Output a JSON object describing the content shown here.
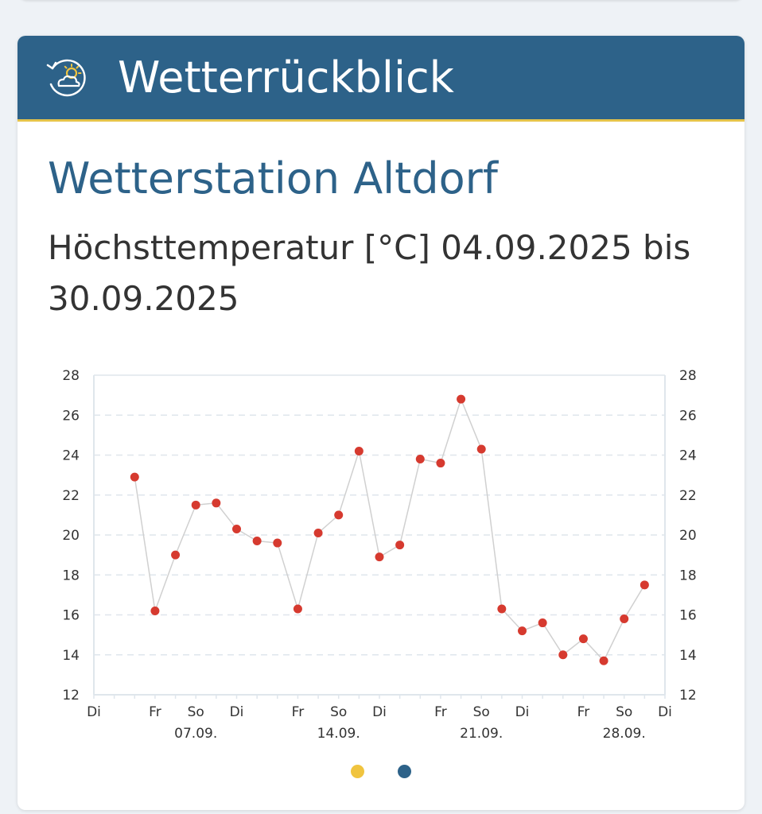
{
  "header": {
    "title": "Wetterrückblick",
    "icon": "weather-history-icon"
  },
  "station": {
    "name": "Wetterstation Altdorf"
  },
  "chart_data": {
    "type": "scatter",
    "title": "Höchsttemperatur [°C] 04.09.2025 bis 30.09.2025",
    "x_start": "2025-09-02",
    "x_end": "2025-09-30",
    "ylim": [
      12,
      28
    ],
    "y_ticks": [
      12,
      14,
      16,
      18,
      20,
      22,
      24,
      26,
      28
    ],
    "grid": true,
    "x_tick_labels": [
      {
        "day": "2025-09-02",
        "label": "Di",
        "sub": ""
      },
      {
        "day": "2025-09-05",
        "label": "Fr",
        "sub": ""
      },
      {
        "day": "2025-09-07",
        "label": "So",
        "sub": "07.09."
      },
      {
        "day": "2025-09-09",
        "label": "Di",
        "sub": ""
      },
      {
        "day": "2025-09-12",
        "label": "Fr",
        "sub": ""
      },
      {
        "day": "2025-09-14",
        "label": "So",
        "sub": "14.09."
      },
      {
        "day": "2025-09-16",
        "label": "Di",
        "sub": ""
      },
      {
        "day": "2025-09-19",
        "label": "Fr",
        "sub": ""
      },
      {
        "day": "2025-09-21",
        "label": "So",
        "sub": "21.09."
      },
      {
        "day": "2025-09-23",
        "label": "Di",
        "sub": ""
      },
      {
        "day": "2025-09-26",
        "label": "Fr",
        "sub": ""
      },
      {
        "day": "2025-09-28",
        "label": "So",
        "sub": "28.09."
      },
      {
        "day": "2025-09-30",
        "label": "Di",
        "sub": ""
      }
    ],
    "series": [
      {
        "color": "#d63a2f",
        "line_color": "#d0d0d0",
        "points": [
          {
            "x": "2025-09-04",
            "y": 22.9
          },
          {
            "x": "2025-09-05",
            "y": 16.2
          },
          {
            "x": "2025-09-06",
            "y": 19.0
          },
          {
            "x": "2025-09-07",
            "y": 21.5
          },
          {
            "x": "2025-09-08",
            "y": 21.6
          },
          {
            "x": "2025-09-09",
            "y": 20.3
          },
          {
            "x": "2025-09-10",
            "y": 19.7
          },
          {
            "x": "2025-09-11",
            "y": 19.6
          },
          {
            "x": "2025-09-12",
            "y": 16.3
          },
          {
            "x": "2025-09-13",
            "y": 20.1
          },
          {
            "x": "2025-09-14",
            "y": 21.0
          },
          {
            "x": "2025-09-15",
            "y": 24.2
          },
          {
            "x": "2025-09-16",
            "y": 18.9
          },
          {
            "x": "2025-09-17",
            "y": 19.5
          },
          {
            "x": "2025-09-18",
            "y": 23.8
          },
          {
            "x": "2025-09-19",
            "y": 23.6
          },
          {
            "x": "2025-09-20",
            "y": 26.8
          },
          {
            "x": "2025-09-21",
            "y": 24.3
          },
          {
            "x": "2025-09-22",
            "y": 16.3
          },
          {
            "x": "2025-09-23",
            "y": 15.2
          },
          {
            "x": "2025-09-24",
            "y": 15.6
          },
          {
            "x": "2025-09-25",
            "y": 14.0
          },
          {
            "x": "2025-09-26",
            "y": 14.8
          },
          {
            "x": "2025-09-27",
            "y": 13.7
          },
          {
            "x": "2025-09-28",
            "y": 15.8
          },
          {
            "x": "2025-09-29",
            "y": 17.5
          }
        ]
      }
    ]
  },
  "pagination": {
    "dots": [
      "#f0c43f",
      "#2d6289"
    ]
  }
}
